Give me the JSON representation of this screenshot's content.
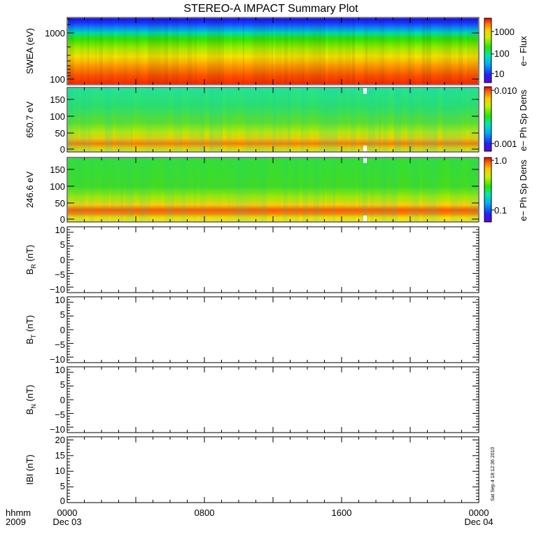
{
  "chart_data": {
    "title": "STEREO-A IMPACT Summary Plot",
    "type": "multi-panel time series",
    "x_axis": {
      "range": [
        "2009-12-03 00:00",
        "2009-12-04 00:00"
      ],
      "major_tick_labels": [
        "0000",
        "0800",
        "1600",
        "0000"
      ],
      "date_labels": [
        "Dec 03",
        "",
        "",
        "Dec 04"
      ],
      "format_label": "hhmm",
      "year_label": "2009"
    },
    "panels": [
      {
        "id": "swea",
        "type": "heatmap",
        "ylabel": "SWEA (eV)",
        "yscale": "log",
        "ylim": [
          100,
          2000
        ],
        "ytick_labels": [
          "100",
          "1000"
        ],
        "colorbar": {
          "label": "e− Flux",
          "scale": "log",
          "tick_labels": [
            "10",
            "100",
            "1000"
          ]
        }
      },
      {
        "id": "pad650",
        "type": "heatmap",
        "ylabel": "650.7 eV",
        "ylim": [
          0,
          180
        ],
        "ytick_labels": [
          "0",
          "50",
          "100",
          "150"
        ],
        "colorbar": {
          "label": "e− Ph Sp Dens",
          "scale": "log",
          "tick_labels": [
            "0.001",
            "0.010"
          ]
        }
      },
      {
        "id": "pad246",
        "type": "heatmap",
        "ylabel": "246.6 eV",
        "ylim": [
          0,
          180
        ],
        "ytick_labels": [
          "0",
          "50",
          "100",
          "150"
        ],
        "colorbar": {
          "label": "e− Ph Sp Dens",
          "scale": "log",
          "tick_labels": [
            "0.1",
            "1.0"
          ]
        }
      },
      {
        "id": "br",
        "type": "line",
        "ylabel": "B",
        "ylabel_subscript": "R",
        "ylabel_unit": "(nT)",
        "ylim": [
          -12,
          12
        ],
        "ytick_labels": [
          "−10",
          "−5",
          "0",
          "5",
          "10"
        ],
        "series": []
      },
      {
        "id": "bt",
        "type": "line",
        "ylabel": "B",
        "ylabel_subscript": "T",
        "ylabel_unit": "(nT)",
        "ylim": [
          -12,
          12
        ],
        "ytick_labels": [
          "−10",
          "−5",
          "0",
          "5",
          "10"
        ],
        "series": []
      },
      {
        "id": "bn",
        "type": "line",
        "ylabel": "B",
        "ylabel_subscript": "N",
        "ylabel_unit": "(nT)",
        "ylim": [
          -12,
          12
        ],
        "ytick_labels": [
          "−10",
          "−5",
          "0",
          "5",
          "10"
        ],
        "series": []
      },
      {
        "id": "bmag",
        "type": "line",
        "ylabel": "IBI (nT)",
        "ylim": [
          0,
          21
        ],
        "ytick_labels": [
          "0",
          "5",
          "10",
          "15",
          "20"
        ],
        "series": []
      }
    ],
    "timestamp": "Sat Sep  4 18:12:36 2010"
  }
}
